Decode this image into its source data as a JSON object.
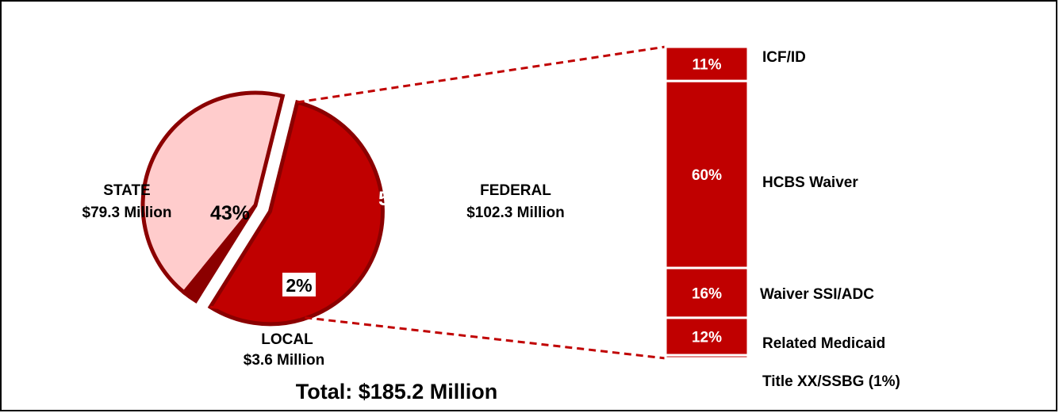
{
  "chart_data": {
    "type": "pie",
    "total_label": "Total: $185.2 Million",
    "colors": {
      "federal": "#c00000",
      "state": "#ffcccc",
      "local": "#8b0000",
      "outline": "#8b0000",
      "bar": "#c00000",
      "leader": "#c00000"
    },
    "slices": [
      {
        "name": "FEDERAL",
        "amount": "$102.3 Million",
        "percent": 55,
        "percent_label": "55%"
      },
      {
        "name": "STATE",
        "amount": "$79.3 Million",
        "percent": 43,
        "percent_label": "43%"
      },
      {
        "name": "LOCAL",
        "amount": "$3.6 Million",
        "percent": 2,
        "percent_label": "2%"
      }
    ],
    "breakdown": {
      "of": "FEDERAL",
      "segments": [
        {
          "label": "ICF/ID",
          "percent": 11,
          "percent_label": "11%"
        },
        {
          "label": "HCBS Waiver",
          "percent": 60,
          "percent_label": "60%"
        },
        {
          "label": "Waiver SSI/ADC",
          "percent": 16,
          "percent_label": "16%"
        },
        {
          "label": "Related Medicaid",
          "percent": 12,
          "percent_label": "12%"
        },
        {
          "label": "Title XX/SSBG (1%)",
          "percent": 1,
          "percent_label": ""
        }
      ]
    }
  }
}
